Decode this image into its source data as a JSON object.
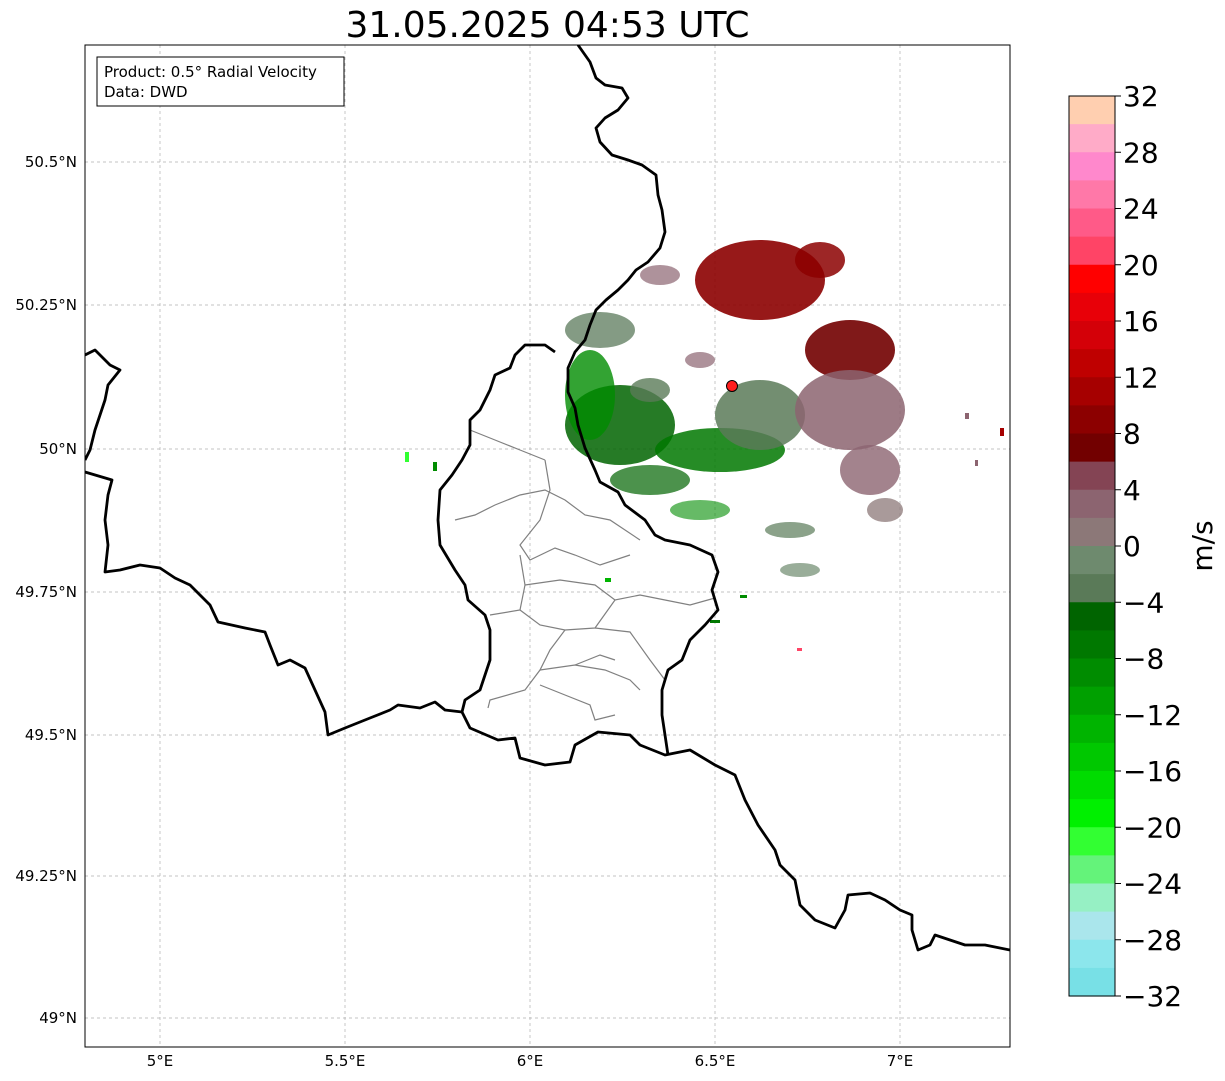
{
  "title": "31.05.2025 04:53 UTC",
  "info_box": {
    "line1": "Product: 0.5° Radial Velocity",
    "line2": "Data: DWD"
  },
  "axes": {
    "lon_ticks": [
      "5°E",
      "5.5°E",
      "6°E",
      "6.5°E",
      "7°E"
    ],
    "lat_ticks": [
      "50.5°N",
      "50.25°N",
      "50°N",
      "49.75°N",
      "49.5°N",
      "49.25°N",
      "49°N"
    ]
  },
  "colorbar": {
    "unit": "m/s",
    "tick_labels": [
      "32",
      "28",
      "24",
      "20",
      "16",
      "12",
      "8",
      "4",
      "0",
      "−4",
      "−8",
      "−12",
      "−16",
      "−20",
      "−24",
      "−28",
      "−32"
    ],
    "colors": [
      "#ffcfb0",
      "#ffabc8",
      "#ff88cc",
      "#ff78a8",
      "#ff5a88",
      "#ff4466",
      "#ff0000",
      "#e80008",
      "#d40008",
      "#bf0000",
      "#a60000",
      "#8c0000",
      "#720000",
      "#844454",
      "#8c6470",
      "#8c7878",
      "#6e8a6e",
      "#5a7a58",
      "#006400",
      "#007800",
      "#008c00",
      "#00a000",
      "#00b400",
      "#00c800",
      "#00dc00",
      "#00f000",
      "#32ff32",
      "#64f37a",
      "#96f0c4",
      "#aae6ec",
      "#8ce6ec",
      "#78e0e6"
    ]
  },
  "station_marker_color": "#ff1e1e"
}
